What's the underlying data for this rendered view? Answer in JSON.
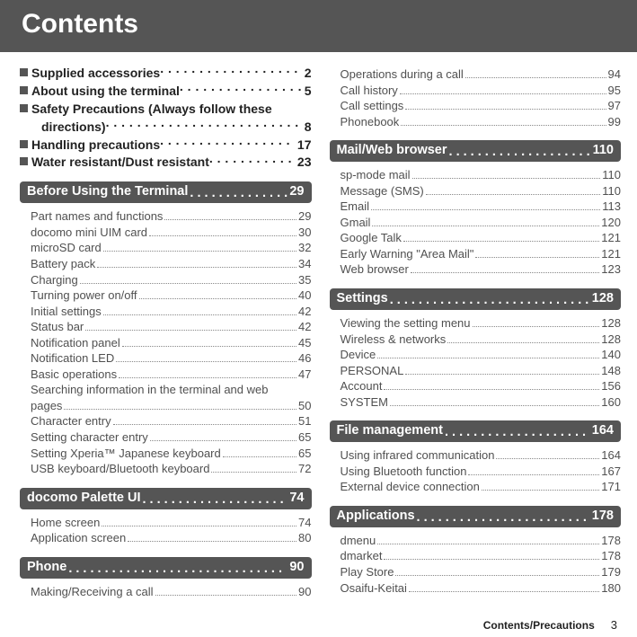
{
  "page": {
    "title": "Contents",
    "footer_label": "Contents/Precautions",
    "footer_page": "3",
    "background": "#ffffff",
    "title_bar_bg": "#555555",
    "title_color": "#ffffff",
    "sect_bg": "#555555",
    "toc_text_color": "#505050"
  },
  "left": {
    "bullets": [
      {
        "label": "Supplied accessories",
        "page": "2"
      },
      {
        "label": "About using the terminal",
        "page": "5"
      },
      {
        "label": "Safety Precautions (Always follow these",
        "cont": "directions)",
        "page": "8"
      },
      {
        "label": "Handling precautions",
        "page": "17"
      },
      {
        "label": "Water resistant/Dust resistant",
        "page": "23"
      }
    ],
    "sections": [
      {
        "title": "Before Using the Terminal",
        "page": "29",
        "items": [
          {
            "t": "Part names and functions",
            "p": "29"
          },
          {
            "t": "docomo mini UIM card",
            "p": "30"
          },
          {
            "t": "microSD card",
            "p": "32"
          },
          {
            "t": "Battery pack",
            "p": "34"
          },
          {
            "t": "Charging",
            "p": "35"
          },
          {
            "t": "Turning power on/off",
            "p": "40"
          },
          {
            "t": "Initial settings",
            "p": "42"
          },
          {
            "t": "Status bar",
            "p": "42"
          },
          {
            "t": "Notification panel",
            "p": "45"
          },
          {
            "t": "Notification LED",
            "p": "46"
          },
          {
            "t": "Basic operations",
            "p": "47"
          },
          {
            "t": "Searching information in the terminal and web",
            "wrap": true
          },
          {
            "t": "pages",
            "p": "50"
          },
          {
            "t": "Character entry",
            "p": "51"
          },
          {
            "t": "Setting character entry",
            "p": "65"
          },
          {
            "t": "Setting Xperia™ Japanese keyboard",
            "p": "65"
          },
          {
            "t": "USB keyboard/Bluetooth keyboard",
            "p": "72"
          }
        ]
      },
      {
        "title": "docomo Palette UI",
        "page": "74",
        "items": [
          {
            "t": "Home screen",
            "p": "74"
          },
          {
            "t": "Application screen",
            "p": "80"
          }
        ]
      },
      {
        "title": "Phone",
        "page": "90",
        "items": [
          {
            "t": "Making/Receiving a call",
            "p": "90"
          }
        ]
      }
    ]
  },
  "right": {
    "lead_items": [
      {
        "t": "Operations during a call",
        "p": "94"
      },
      {
        "t": "Call history",
        "p": "95"
      },
      {
        "t": "Call settings",
        "p": "97"
      },
      {
        "t": "Phonebook",
        "p": "99"
      }
    ],
    "sections": [
      {
        "title": "Mail/Web browser",
        "page": "110",
        "items": [
          {
            "t": "sp-mode mail",
            "p": "110"
          },
          {
            "t": "Message (SMS)",
            "p": "110"
          },
          {
            "t": "Email",
            "p": "113"
          },
          {
            "t": "Gmail",
            "p": "120"
          },
          {
            "t": "Google Talk",
            "p": "121"
          },
          {
            "t": "Early Warning \"Area Mail\"",
            "p": "121"
          },
          {
            "t": "Web browser",
            "p": "123"
          }
        ]
      },
      {
        "title": "Settings",
        "page": "128",
        "items": [
          {
            "t": "Viewing the setting menu",
            "p": "128"
          },
          {
            "t": "Wireless & networks",
            "p": "128"
          },
          {
            "t": "Device",
            "p": "140"
          },
          {
            "t": "PERSONAL",
            "p": "148"
          },
          {
            "t": "Account",
            "p": "156"
          },
          {
            "t": "SYSTEM",
            "p": "160"
          }
        ]
      },
      {
        "title": "File management",
        "page": "164",
        "items": [
          {
            "t": "Using infrared communication",
            "p": "164"
          },
          {
            "t": "Using Bluetooth function",
            "p": "167"
          },
          {
            "t": "External device connection",
            "p": "171"
          }
        ]
      },
      {
        "title": "Applications",
        "page": "178",
        "items": [
          {
            "t": "dmenu",
            "p": "178"
          },
          {
            "t": "dmarket",
            "p": "178"
          },
          {
            "t": "Play Store",
            "p": "179"
          },
          {
            "t": "Osaifu-Keitai",
            "p": "180"
          }
        ]
      }
    ]
  }
}
